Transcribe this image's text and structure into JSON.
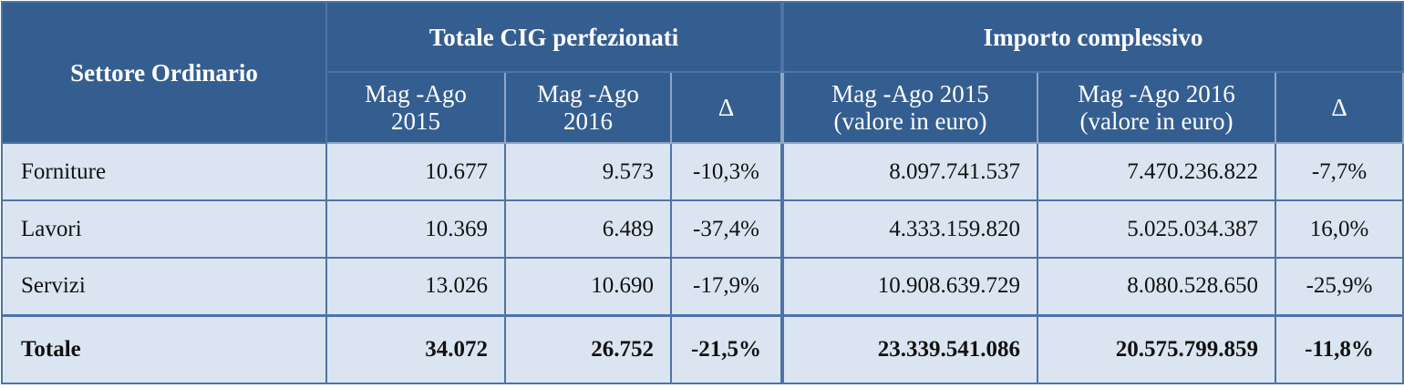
{
  "table": {
    "corner": "Settore Ordinario",
    "groups": [
      "Totale CIG perfezionati",
      "Importo complessivo"
    ],
    "subheaders": [
      [
        "Mag -Ago",
        "2015"
      ],
      [
        "Mag -Ago",
        "2016"
      ],
      [
        "Δ"
      ],
      [
        "Mag -Ago 2015",
        "(valore in euro)"
      ],
      [
        "Mag -Ago 2016",
        "(valore in euro)"
      ],
      [
        "Δ"
      ]
    ],
    "rows": [
      [
        "Forniture",
        "10.677",
        "9.573",
        "-10,3%",
        "8.097.741.537",
        "7.470.236.822",
        "-7,7%"
      ],
      [
        "Lavori",
        "10.369",
        "6.489",
        "-37,4%",
        "4.333.159.820",
        "5.025.034.387",
        "16,0%"
      ],
      [
        "Servizi",
        "13.026",
        "10.690",
        "-17,9%",
        "10.908.639.729",
        "8.080.528.650",
        "-25,9%"
      ]
    ],
    "total": [
      "Totale",
      "34.072",
      "26.752",
      "-21,5%",
      "23.339.541.086",
      "20.575.799.859",
      "-11,8%"
    ]
  }
}
